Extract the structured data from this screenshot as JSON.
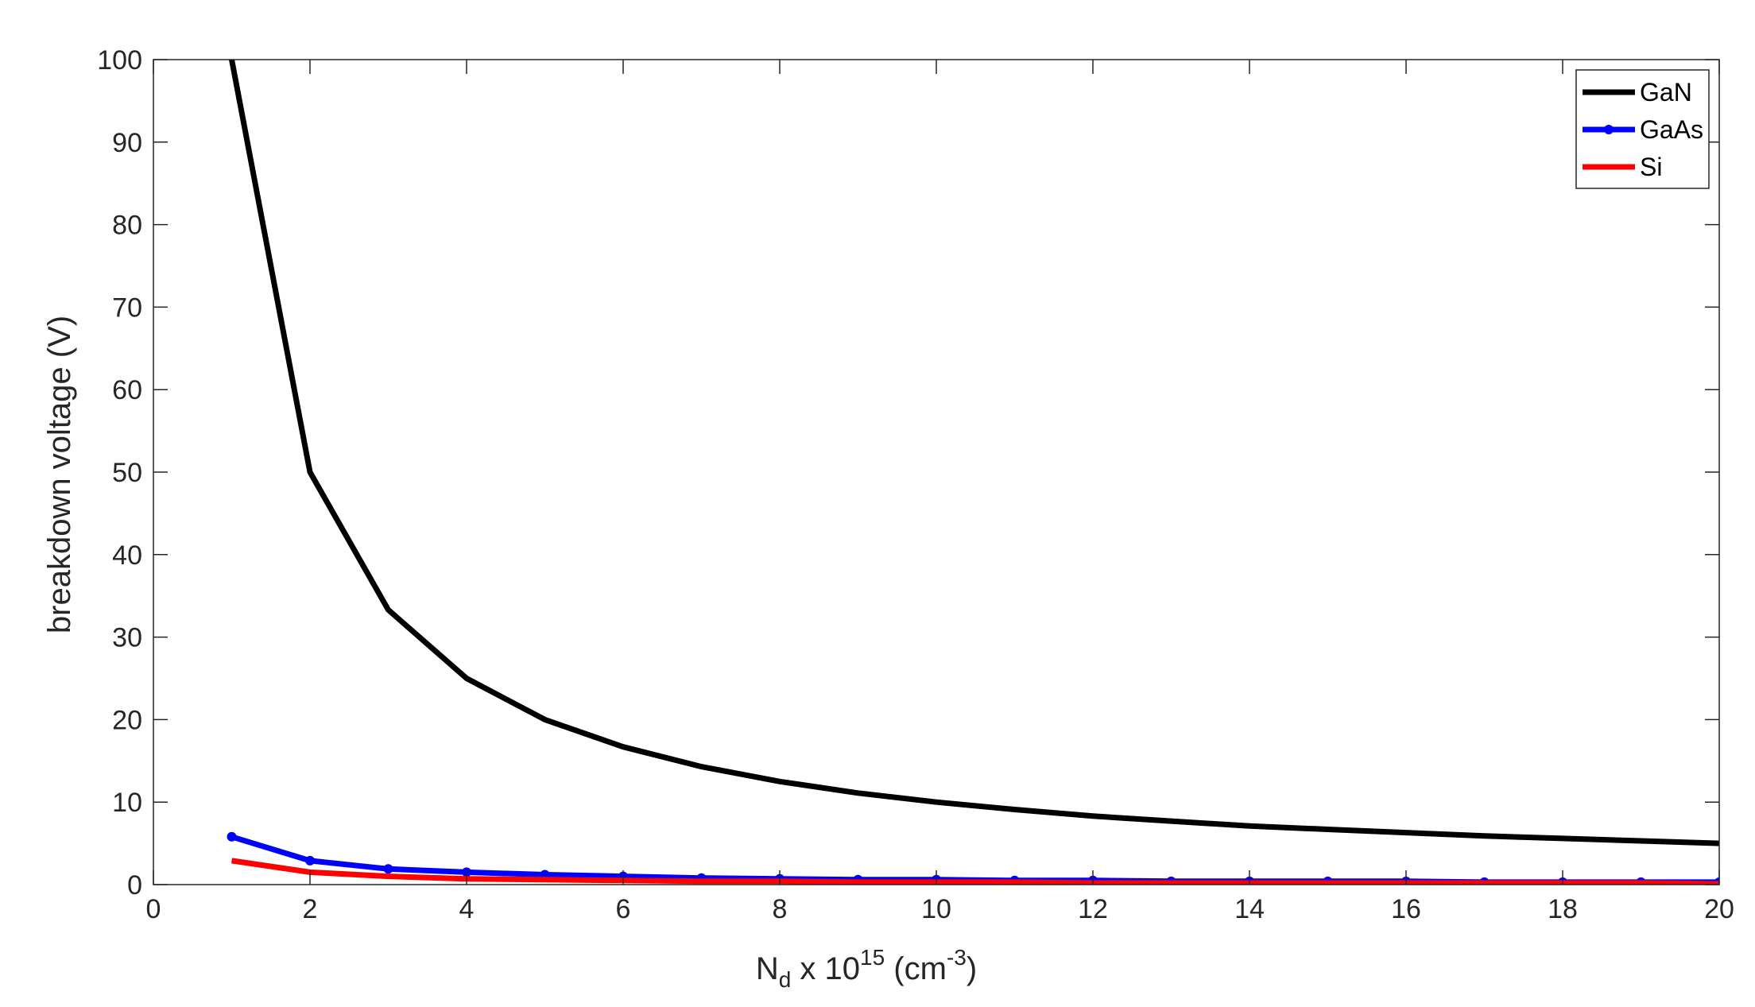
{
  "chart_data": {
    "type": "line",
    "title": "",
    "xlabel": {
      "base": "N",
      "sub": "d",
      "mid": " x 10",
      "sup": "15",
      "unit_open": " (cm",
      "unit_sup": "-3",
      "unit_close": ")"
    },
    "ylabel": "breakdown voltage (V)",
    "xlim": [
      0,
      20
    ],
    "ylim": [
      0,
      100
    ],
    "x_ticks": [
      "0",
      "2",
      "4",
      "6",
      "8",
      "10",
      "12",
      "14",
      "16",
      "18",
      "20"
    ],
    "y_ticks": [
      "0",
      "10",
      "20",
      "30",
      "40",
      "50",
      "60",
      "70",
      "80",
      "90",
      "100"
    ],
    "grid": false,
    "box": true,
    "legend_position": "top-right",
    "x": [
      1,
      2,
      3,
      4,
      5,
      6,
      7,
      8,
      9,
      10,
      11,
      12,
      13,
      14,
      15,
      16,
      17,
      18,
      19,
      20
    ],
    "series": [
      {
        "name": "GaN",
        "color": "#000000",
        "marker": "none",
        "values": [
          100,
          50,
          33.3,
          25,
          20,
          16.7,
          14.3,
          12.5,
          11.1,
          10,
          9.1,
          8.3,
          7.7,
          7.1,
          6.7,
          6.3,
          5.9,
          5.6,
          5.3,
          5
        ]
      },
      {
        "name": "GaAs",
        "color": "#0000ff",
        "marker": "dot",
        "values": [
          5.8,
          2.9,
          1.9,
          1.5,
          1.2,
          1.0,
          0.8,
          0.7,
          0.6,
          0.6,
          0.5,
          0.5,
          0.4,
          0.4,
          0.4,
          0.4,
          0.3,
          0.3,
          0.3,
          0.3
        ]
      },
      {
        "name": "Si",
        "color": "#ff0000",
        "marker": "none",
        "values": [
          2.9,
          1.5,
          1.0,
          0.7,
          0.6,
          0.5,
          0.4,
          0.4,
          0.3,
          0.3,
          0.3,
          0.2,
          0.2,
          0.2,
          0.2,
          0.2,
          0.2,
          0.2,
          0.2,
          0.1
        ]
      }
    ]
  }
}
